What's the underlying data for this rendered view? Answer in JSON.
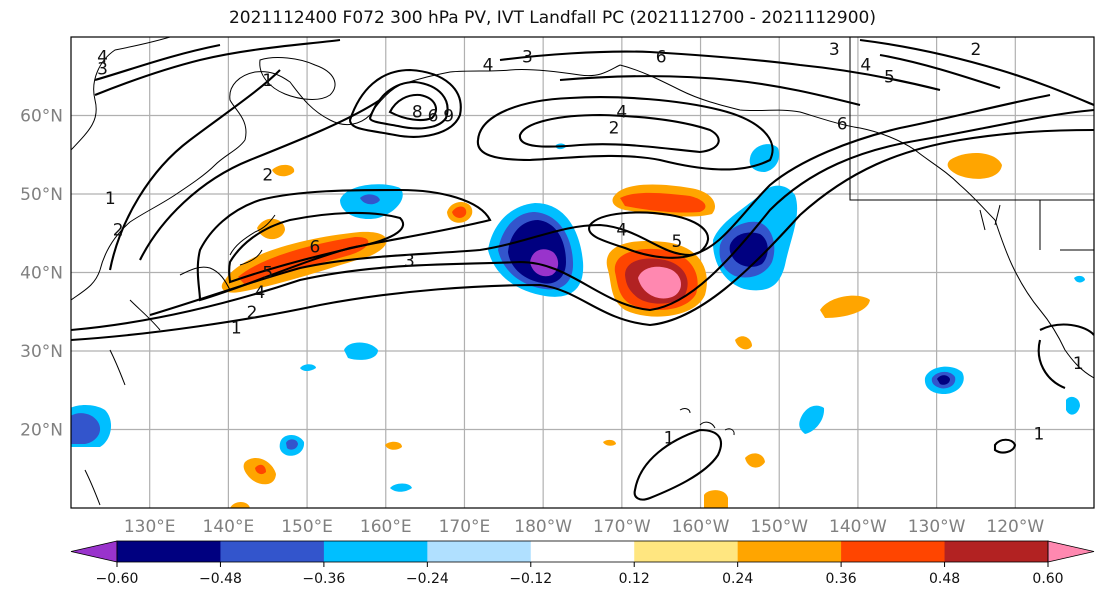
{
  "title": "2021112400 F072 300 hPa PV, IVT Landfall PC (2021112700 - 2021112900)",
  "latitude_labels": [
    {
      "lat": 60,
      "text": "60°N"
    },
    {
      "lat": 50,
      "text": "50°N"
    },
    {
      "lat": 40,
      "text": "40°N"
    },
    {
      "lat": 30,
      "text": "30°N"
    },
    {
      "lat": 20,
      "text": "20°N"
    }
  ],
  "longitude_labels": [
    {
      "lon": 130,
      "text": "130°E"
    },
    {
      "lon": 140,
      "text": "140°E"
    },
    {
      "lon": 150,
      "text": "150°E"
    },
    {
      "lon": 160,
      "text": "160°E"
    },
    {
      "lon": 170,
      "text": "170°E"
    },
    {
      "lon": 180,
      "text": "180°W"
    },
    {
      "lon": 190,
      "text": "170°W"
    },
    {
      "lon": 200,
      "text": "160°W"
    },
    {
      "lon": 210,
      "text": "150°W"
    },
    {
      "lon": 220,
      "text": "140°W"
    },
    {
      "lon": 230,
      "text": "130°W"
    },
    {
      "lon": 240,
      "text": "120°W"
    }
  ],
  "map_extent": {
    "lon_min": 120,
    "lon_max": 250,
    "lat_min": 10,
    "lat_max": 70
  },
  "colorbar": {
    "colors": [
      "#9933cc",
      "#000080",
      "#3355cc",
      "#00bfff",
      "#b0e0ff",
      "#ffffff",
      "#ffe680",
      "#ffa500",
      "#ff4500",
      "#b22222",
      "#ff88b0"
    ],
    "ticks": [
      "−0.60",
      "−0.48",
      "−0.36",
      "−0.24",
      "−0.12",
      "0.12",
      "0.24",
      "0.36",
      "0.48",
      "0.60"
    ]
  },
  "contour_labels": [
    {
      "text": "4",
      "lon": 124,
      "lat": 67.5
    },
    {
      "text": "3",
      "lon": 124,
      "lat": 66
    },
    {
      "text": "1",
      "lon": 145,
      "lat": 64.5
    },
    {
      "text": "2",
      "lon": 145,
      "lat": 52.5
    },
    {
      "text": "1",
      "lon": 125,
      "lat": 49.5
    },
    {
      "text": "2",
      "lon": 126,
      "lat": 45.5
    },
    {
      "text": "6",
      "lon": 151,
      "lat": 43.3
    },
    {
      "text": "5",
      "lon": 145,
      "lat": 40
    },
    {
      "text": "4",
      "lon": 144,
      "lat": 37.5
    },
    {
      "text": "2",
      "lon": 143,
      "lat": 35
    },
    {
      "text": "1",
      "lon": 141,
      "lat": 33
    },
    {
      "text": "3",
      "lon": 163,
      "lat": 41.5
    },
    {
      "text": "8",
      "lon": 164,
      "lat": 60.5
    },
    {
      "text": "6",
      "lon": 166,
      "lat": 60
    },
    {
      "text": "9",
      "lon": 168,
      "lat": 60
    },
    {
      "text": "4",
      "lon": 173,
      "lat": 66.5
    },
    {
      "text": "3",
      "lon": 178,
      "lat": 67.5
    },
    {
      "text": "6",
      "lon": 195,
      "lat": 67.5
    },
    {
      "text": "4",
      "lon": 190,
      "lat": 60.5
    },
    {
      "text": "2",
      "lon": 189,
      "lat": 58.5
    },
    {
      "text": "4",
      "lon": 190,
      "lat": 45.5
    },
    {
      "text": "5",
      "lon": 197,
      "lat": 44
    },
    {
      "text": "3",
      "lon": 217,
      "lat": 68.5
    },
    {
      "text": "2",
      "lon": 235,
      "lat": 68.5
    },
    {
      "text": "4",
      "lon": 221,
      "lat": 66.5
    },
    {
      "text": "5",
      "lon": 224,
      "lat": 65
    },
    {
      "text": "6",
      "lon": 218,
      "lat": 59
    },
    {
      "text": "1",
      "lon": 196,
      "lat": 19
    },
    {
      "text": "1",
      "lon": 248,
      "lat": 28.5
    },
    {
      "text": "1",
      "lon": 243,
      "lat": 19.5
    }
  ]
}
